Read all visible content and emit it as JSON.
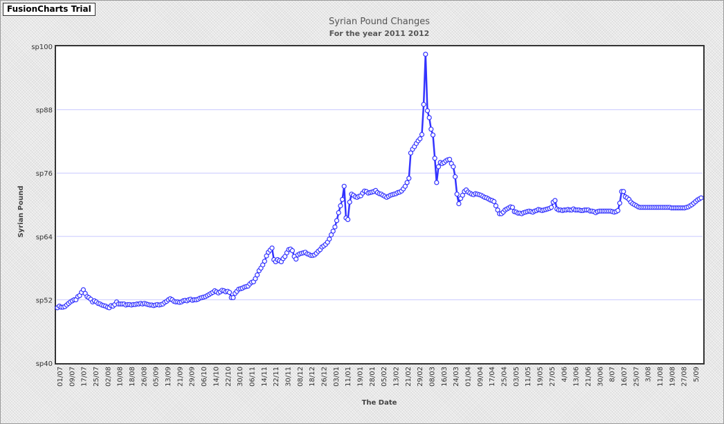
{
  "badge": {
    "label": "FusionCharts Trial"
  },
  "chart_data": {
    "type": "line",
    "title": "Syrian Pound Changes",
    "subtitle": "For the year 2011 2012",
    "xlabel": "The Date",
    "ylabel": "Syrian Pound",
    "ylim": [
      40,
      100
    ],
    "y_ticks": [
      "sp40",
      "sp52",
      "sp64",
      "sp76",
      "sp88",
      "sp100"
    ],
    "grid": true,
    "x_tick_labels": [
      "01/07",
      "09/07",
      "17/07",
      "25/07",
      "02/08",
      "10/08",
      "18/08",
      "26/08",
      "05/09",
      "13/09",
      "21/09",
      "29/09",
      "06/10",
      "14/10",
      "22/10",
      "30/10",
      "06/11",
      "14/11",
      "22/11",
      "30/11",
      "08/12",
      "18/12",
      "26/12",
      "03/01",
      "11/01",
      "19/01",
      "28/01",
      "05/02",
      "13/02",
      "21/02",
      "29/02",
      "08/03",
      "16/03",
      "24/03",
      "01/04",
      "09/04",
      "17/04",
      "25/04",
      "03/05",
      "11/05",
      "19/05",
      "27/05",
      "4/06",
      "13/06",
      "21/06",
      "30/06",
      "8/07",
      "16/07",
      "25/07",
      "3/08",
      "11/08",
      "19/08",
      "27/08",
      "5/09"
    ],
    "series": [
      {
        "color": "#3333ff",
        "values": [
          50.5,
          50.8,
          50.6,
          50.6,
          50.7,
          51.0,
          51.3,
          51.6,
          51.8,
          52.0,
          52.0,
          52.6,
          52.8,
          53.4,
          53.9,
          53.2,
          52.6,
          52.4,
          52.1,
          51.6,
          51.8,
          51.6,
          51.3,
          51.2,
          51.0,
          50.9,
          50.8,
          50.6,
          50.5,
          50.9,
          50.8,
          51.1,
          51.6,
          51.2,
          51.2,
          51.2,
          51.2,
          51.0,
          51.1,
          51.1,
          51.0,
          51.1,
          51.1,
          51.2,
          51.2,
          51.3,
          51.2,
          51.3,
          51.2,
          51.1,
          51.0,
          51.0,
          50.9,
          51.0,
          51.1,
          51.0,
          51.1,
          51.2,
          51.5,
          51.7,
          52.0,
          52.2,
          52.0,
          51.7,
          51.6,
          51.6,
          51.5,
          51.6,
          51.8,
          51.9,
          51.8,
          52.0,
          52.1,
          51.9,
          52.0,
          52.0,
          52.1,
          52.3,
          52.4,
          52.5,
          52.6,
          52.8,
          53.0,
          53.2,
          53.4,
          53.7,
          53.5,
          53.3,
          53.5,
          53.8,
          53.7,
          53.5,
          53.6,
          53.4,
          52.4,
          52.4,
          53.2,
          53.6,
          54.0,
          54.1,
          54.2,
          54.4,
          54.5,
          54.6,
          55.0,
          55.3,
          55.4,
          56.0,
          56.7,
          57.5,
          58.0,
          58.6,
          59.3,
          60.3,
          61.0,
          61.4,
          61.8,
          59.6,
          59.2,
          59.6,
          59.4,
          59.2,
          59.8,
          60.2,
          60.9,
          61.5,
          61.6,
          61.3,
          60.2,
          59.7,
          60.5,
          60.7,
          60.8,
          60.9,
          61.0,
          60.7,
          60.6,
          60.4,
          60.4,
          60.5,
          60.8,
          61.2,
          61.5,
          62.0,
          62.2,
          62.5,
          62.9,
          63.5,
          64.3,
          65.0,
          65.8,
          67.0,
          68.5,
          69.8,
          71.0,
          73.5,
          67.5,
          67.2,
          70.5,
          72.0,
          71.8,
          71.5,
          71.4,
          71.6,
          71.7,
          72.2,
          72.6,
          72.5,
          72.2,
          72.3,
          72.4,
          72.5,
          72.7,
          72.3,
          72.1,
          72.0,
          71.8,
          71.6,
          71.4,
          71.6,
          71.8,
          71.9,
          72.0,
          72.1,
          72.3,
          72.4,
          72.6,
          73.0,
          73.5,
          74.2,
          75.0,
          79.8,
          80.5,
          81.0,
          81.6,
          82.1,
          82.5,
          83.3,
          89.0,
          98.5,
          87.8,
          86.5,
          84.3,
          83.2,
          78.8,
          74.2,
          77.2,
          78.0,
          77.8,
          78.0,
          78.3,
          78.5,
          78.6,
          77.8,
          77.2,
          75.3,
          72.0,
          70.2,
          71.2,
          71.8,
          72.5,
          72.8,
          72.4,
          72.2,
          72.0,
          71.9,
          72.1,
          72.0,
          71.9,
          71.8,
          71.6,
          71.4,
          71.3,
          71.1,
          70.9,
          70.8,
          70.6,
          69.8,
          69.0,
          68.3,
          68.3,
          68.6,
          69.0,
          69.2,
          69.4,
          69.6,
          69.5,
          68.7,
          68.6,
          68.4,
          68.4,
          68.3,
          68.5,
          68.6,
          68.7,
          68.8,
          68.7,
          68.6,
          68.8,
          68.9,
          69.1,
          69.0,
          68.9,
          69.0,
          69.1,
          69.2,
          69.3,
          69.5,
          70.5,
          70.8,
          69.2,
          69.0,
          69.0,
          68.9,
          69.0,
          69.0,
          69.1,
          69.0,
          69.0,
          69.2,
          69.0,
          69.0,
          69.0,
          68.9,
          68.9,
          69.0,
          69.0,
          69.0,
          68.8,
          68.8,
          68.7,
          68.5,
          68.7,
          68.8,
          68.8,
          68.8,
          68.8,
          68.8,
          68.8,
          68.8,
          68.7,
          68.6,
          68.7,
          68.9,
          70.3,
          72.5,
          72.5,
          71.5,
          71.3,
          71.0,
          70.5,
          70.2,
          70.0,
          69.8,
          69.6,
          69.5,
          69.5,
          69.5,
          69.5,
          69.5,
          69.5,
          69.5,
          69.5,
          69.5,
          69.5,
          69.5,
          69.5,
          69.5,
          69.5,
          69.5,
          69.5,
          69.5,
          69.4,
          69.4,
          69.4,
          69.4,
          69.4,
          69.4,
          69.4,
          69.4,
          69.5,
          69.6,
          69.8,
          70.0,
          70.3,
          70.6,
          70.9,
          71.1,
          71.3
        ]
      }
    ]
  }
}
